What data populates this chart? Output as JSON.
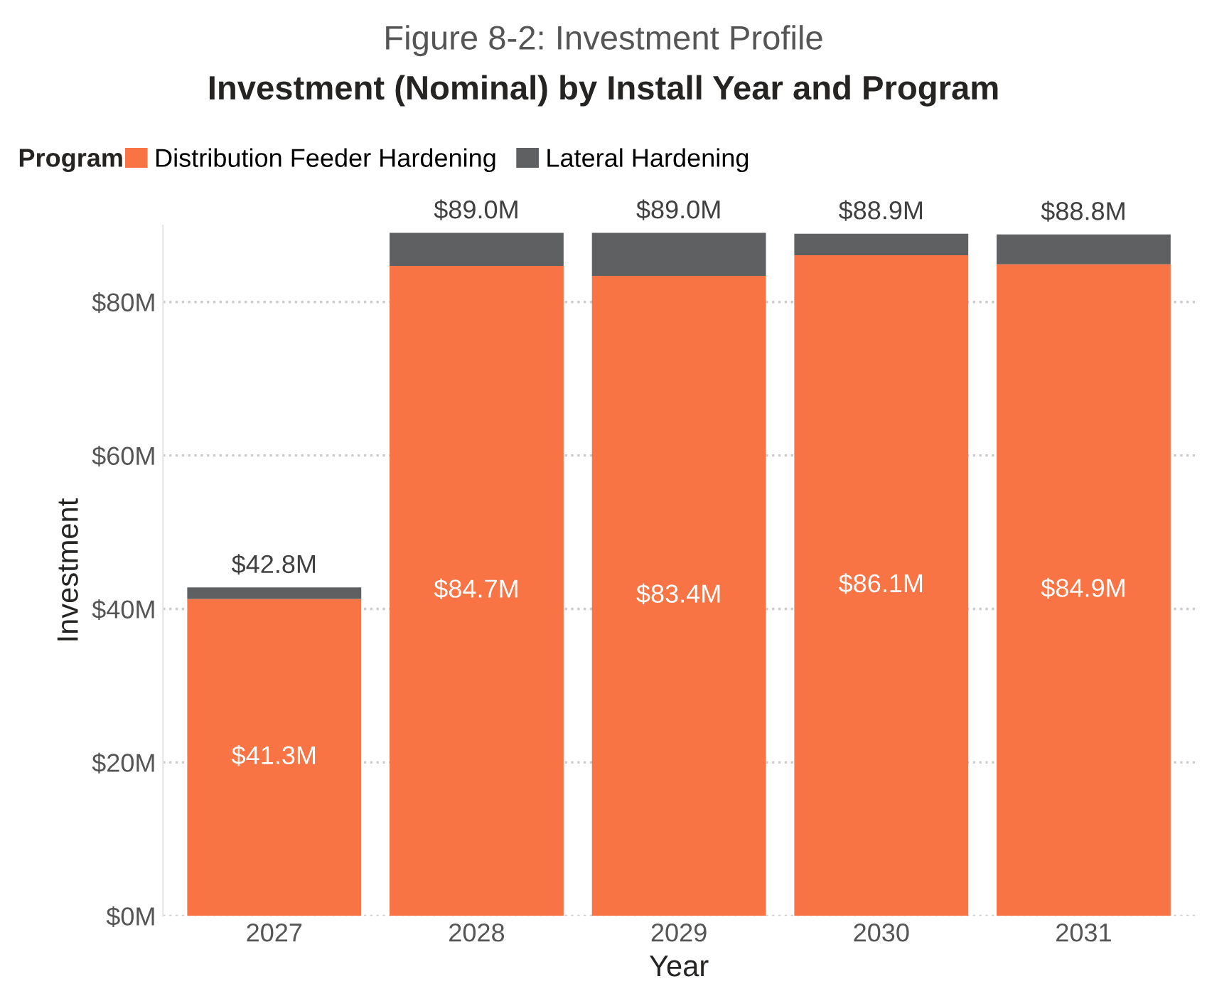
{
  "chart_data": {
    "type": "bar",
    "title": "Figure 8-2: Investment Profile",
    "subtitle": "Investment (Nominal) by Install Year and Program",
    "xlabel": "Year",
    "ylabel": "Investment",
    "legend_title": "Program",
    "legend": "top left",
    "grid": "y",
    "stacked": true,
    "categories": [
      "2027",
      "2028",
      "2029",
      "2030",
      "2031"
    ],
    "series": [
      {
        "name": "Distribution Feeder Hardening",
        "color": "#f97444",
        "values": [
          41.3,
          84.7,
          83.4,
          86.1,
          84.9
        ],
        "value_labels": [
          "$41.3M",
          "$84.7M",
          "$83.4M",
          "$86.1M",
          "$84.9M"
        ]
      },
      {
        "name": "Lateral Hardening",
        "color": "#5f6062",
        "values": [
          1.5,
          4.3,
          5.6,
          2.8,
          3.9
        ]
      }
    ],
    "totals": [
      "$42.8M",
      "$89.0M",
      "$89.0M",
      "$88.9M",
      "$88.8M"
    ],
    "ylim": [
      0,
      90
    ],
    "yticks": [
      {
        "value": 0,
        "label": "$0M"
      },
      {
        "value": 20,
        "label": "$20M"
      },
      {
        "value": 40,
        "label": "$40M"
      },
      {
        "value": 60,
        "label": "$60M"
      },
      {
        "value": 80,
        "label": "$80M"
      }
    ]
  }
}
